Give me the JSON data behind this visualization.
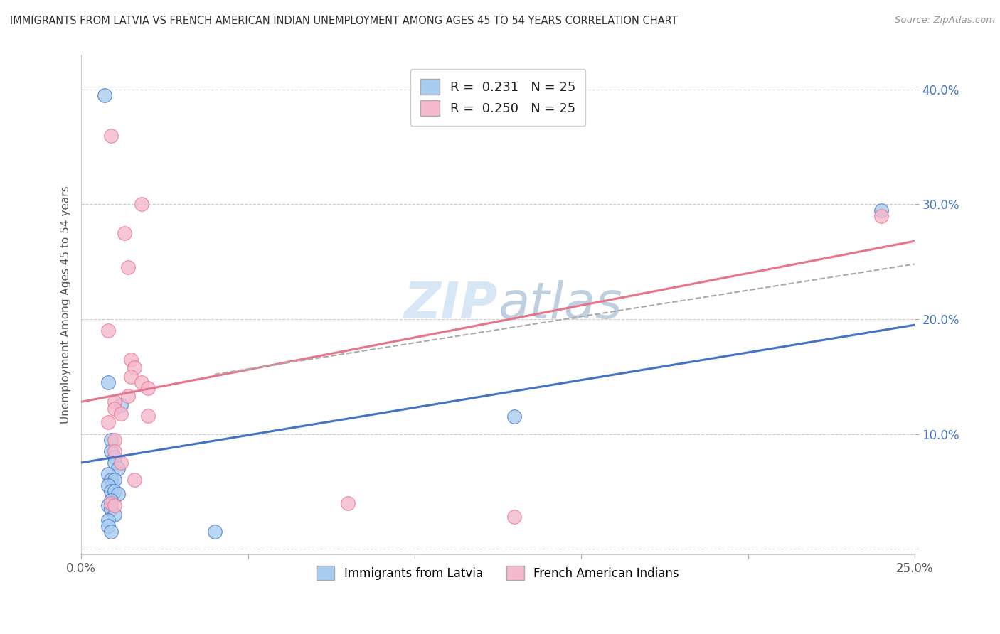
{
  "title": "IMMIGRANTS FROM LATVIA VS FRENCH AMERICAN INDIAN UNEMPLOYMENT AMONG AGES 45 TO 54 YEARS CORRELATION CHART",
  "source": "Source: ZipAtlas.com",
  "ylabel": "Unemployment Among Ages 45 to 54 years",
  "xlim": [
    0.0,
    0.25
  ],
  "ylim": [
    -0.005,
    0.43
  ],
  "xticks": [
    0.0,
    0.05,
    0.1,
    0.15,
    0.2,
    0.25
  ],
  "xticklabels": [
    "0.0%",
    "",
    "",
    "",
    "",
    "25.0%"
  ],
  "yticks": [
    0.0,
    0.1,
    0.2,
    0.3,
    0.4
  ],
  "yticklabels": [
    "",
    "10.0%",
    "20.0%",
    "30.0%",
    "40.0%"
  ],
  "watermark": "ZIPatlas",
  "color_blue": "#A8CCF0",
  "color_pink": "#F5B8CC",
  "color_blue_line": "#4472C4",
  "color_pink_line": "#E8748A",
  "color_dashed_line": "#AAAAAA",
  "scatter_blue": [
    [
      0.007,
      0.395
    ],
    [
      0.008,
      0.145
    ],
    [
      0.012,
      0.125
    ],
    [
      0.009,
      0.095
    ],
    [
      0.009,
      0.085
    ],
    [
      0.01,
      0.08
    ],
    [
      0.01,
      0.075
    ],
    [
      0.011,
      0.07
    ],
    [
      0.008,
      0.065
    ],
    [
      0.009,
      0.06
    ],
    [
      0.01,
      0.06
    ],
    [
      0.008,
      0.055
    ],
    [
      0.009,
      0.05
    ],
    [
      0.01,
      0.05
    ],
    [
      0.011,
      0.048
    ],
    [
      0.009,
      0.042
    ],
    [
      0.008,
      0.038
    ],
    [
      0.009,
      0.035
    ],
    [
      0.01,
      0.03
    ],
    [
      0.008,
      0.025
    ],
    [
      0.008,
      0.02
    ],
    [
      0.009,
      0.015
    ],
    [
      0.04,
      0.015
    ],
    [
      0.13,
      0.115
    ],
    [
      0.24,
      0.295
    ]
  ],
  "scatter_pink": [
    [
      0.009,
      0.36
    ],
    [
      0.018,
      0.3
    ],
    [
      0.013,
      0.275
    ],
    [
      0.014,
      0.245
    ],
    [
      0.008,
      0.19
    ],
    [
      0.015,
      0.165
    ],
    [
      0.016,
      0.158
    ],
    [
      0.015,
      0.15
    ],
    [
      0.018,
      0.145
    ],
    [
      0.02,
      0.14
    ],
    [
      0.014,
      0.133
    ],
    [
      0.01,
      0.128
    ],
    [
      0.01,
      0.122
    ],
    [
      0.012,
      0.118
    ],
    [
      0.02,
      0.116
    ],
    [
      0.008,
      0.11
    ],
    [
      0.01,
      0.095
    ],
    [
      0.01,
      0.085
    ],
    [
      0.012,
      0.075
    ],
    [
      0.016,
      0.06
    ],
    [
      0.009,
      0.04
    ],
    [
      0.01,
      0.038
    ],
    [
      0.08,
      0.04
    ],
    [
      0.13,
      0.028
    ],
    [
      0.24,
      0.29
    ]
  ],
  "blue_line_x": [
    0.0,
    0.25
  ],
  "blue_line_y": [
    0.075,
    0.195
  ],
  "pink_line_x": [
    0.0,
    0.25
  ],
  "pink_line_y": [
    0.128,
    0.268
  ],
  "dashed_line_x": [
    0.04,
    0.25
  ],
  "dashed_line_y": [
    0.152,
    0.248
  ],
  "legend_label1": "Immigrants from Latvia",
  "legend_label2": "French American Indians",
  "background_color": "#FFFFFF",
  "grid_color": "#CCCCCC"
}
